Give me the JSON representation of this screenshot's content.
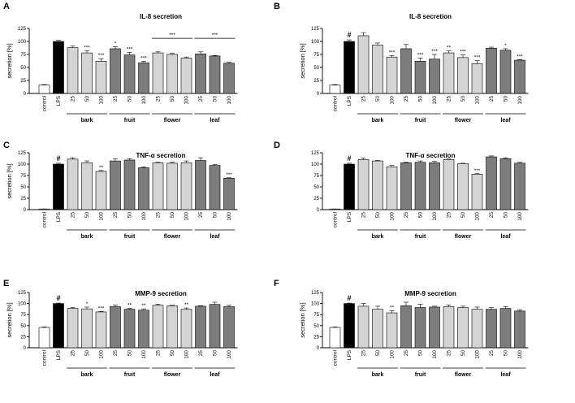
{
  "chart_data": [
    {
      "panel": "A",
      "type": "bar",
      "title": "IL-8 secretion",
      "ylabel": "secretion [%]",
      "ylim": [
        0,
        125
      ],
      "yticks": [
        "0",
        "25",
        "50",
        "75",
        "100",
        "125"
      ],
      "categories": [
        "control",
        "LPS",
        "25",
        "50",
        "100",
        "25",
        "50",
        "100",
        "25",
        "50",
        "100",
        "25",
        "50",
        "100"
      ],
      "values": [
        16,
        100,
        88,
        78,
        62,
        86,
        74,
        59,
        78,
        75,
        68,
        76,
        72,
        58
      ],
      "errors": [
        1,
        2,
        3,
        4,
        5,
        4,
        5,
        3,
        2,
        2,
        2,
        4,
        1,
        2
      ],
      "annotations": [
        "",
        "",
        "",
        "***",
        "***",
        "*",
        "***",
        "***",
        "",
        "",
        "",
        "",
        "",
        ""
      ],
      "group_lines": [
        [
          "***",
          8,
          10
        ],
        [
          "***",
          11,
          13
        ]
      ],
      "hash": "",
      "groups": [
        "bark",
        "fruit",
        "flower",
        "leaf"
      ]
    },
    {
      "panel": "B",
      "type": "bar",
      "title": "IL-8 secretion",
      "ylabel": "secretion [%]",
      "ylim": [
        0,
        125
      ],
      "yticks": [
        "0",
        "25",
        "50",
        "75",
        "100",
        "125"
      ],
      "categories": [
        "control",
        "LPS",
        "25",
        "50",
        "100",
        "25",
        "50",
        "100",
        "25",
        "50",
        "100",
        "25",
        "50",
        "100"
      ],
      "values": [
        16,
        100,
        111,
        93,
        70,
        86,
        62,
        66,
        78,
        69,
        57,
        87,
        83,
        64
      ],
      "errors": [
        1,
        3,
        6,
        4,
        3,
        8,
        6,
        9,
        4,
        5,
        6,
        2,
        3,
        1
      ],
      "annotations": [
        "",
        "",
        "",
        "",
        "***",
        "",
        "***",
        "***",
        "**",
        "***",
        "***",
        "",
        "*",
        "***"
      ],
      "group_lines": [],
      "hash": "#",
      "groups": [
        "bark",
        "fruit",
        "flower",
        "leaf"
      ]
    },
    {
      "panel": "C",
      "type": "bar",
      "title": "TNF-α secretion",
      "ylabel": "secretion [%]",
      "ylim": [
        0,
        125
      ],
      "yticks": [
        "0",
        "25",
        "50",
        "75",
        "100",
        "125"
      ],
      "categories": [
        "control",
        "LPS",
        "25",
        "50",
        "100",
        "25",
        "50",
        "100",
        "25",
        "50",
        "100",
        "25",
        "50",
        "100"
      ],
      "values": [
        1,
        100,
        111,
        103,
        84,
        107,
        109,
        92,
        103,
        102,
        103,
        108,
        97,
        69
      ],
      "errors": [
        0.5,
        2,
        3,
        4,
        2,
        5,
        3,
        2,
        1,
        2,
        4,
        6,
        2,
        1
      ],
      "annotations": [
        "",
        "",
        "",
        "",
        "**",
        "",
        "",
        "",
        "",
        "",
        "",
        "",
        "",
        "***"
      ],
      "group_lines": [],
      "hash": "#",
      "groups": [
        "bark",
        "fruit",
        "flower",
        "leaf"
      ]
    },
    {
      "panel": "D",
      "type": "bar",
      "title": "TNF-α secretion",
      "ylabel": "",
      "ylim": [
        0,
        125
      ],
      "yticks": [
        "0",
        "25",
        "50",
        "75",
        "100",
        "125"
      ],
      "categories": [
        "control",
        "LPS",
        "25",
        "50",
        "100",
        "25",
        "50",
        "100",
        "25",
        "50",
        "100",
        "25",
        "50",
        "100"
      ],
      "values": [
        1,
        100,
        110,
        107,
        94,
        103,
        104,
        103,
        110,
        101,
        78,
        116,
        112,
        102
      ],
      "errors": [
        0.5,
        2,
        3,
        1,
        3,
        1,
        3,
        3,
        1,
        1,
        1,
        2,
        2,
        2
      ],
      "annotations": [
        "",
        "",
        "",
        "",
        "",
        "",
        "",
        "",
        "",
        "",
        "***",
        "",
        "",
        ""
      ],
      "group_lines": [],
      "hash": "#",
      "groups": [
        "bark",
        "fruit",
        "flower",
        "leaf"
      ]
    },
    {
      "panel": "E",
      "type": "bar",
      "title": "MMP-9 secretion",
      "ylabel": "secretion [%]",
      "ylim": [
        0,
        125
      ],
      "yticks": [
        "0",
        "25",
        "50",
        "75",
        "100",
        "125"
      ],
      "categories": [
        "control",
        "LPS",
        "25",
        "50",
        "100",
        "25",
        "50",
        "100",
        "25",
        "50",
        "100",
        "25",
        "50",
        "100"
      ],
      "values": [
        46,
        100,
        89,
        88,
        81,
        93,
        87,
        85,
        96,
        95,
        87,
        94,
        98,
        93
      ],
      "errors": [
        1,
        1,
        2,
        4,
        1,
        4,
        2,
        3,
        2,
        1,
        3,
        1,
        5,
        3
      ],
      "annotations": [
        "",
        "",
        "",
        "*",
        "***",
        "",
        "**",
        "**",
        "",
        "",
        "**",
        "",
        "",
        ""
      ],
      "group_lines": [],
      "hash": "#",
      "groups": [
        "bark",
        "fruit",
        "flower",
        "leaf"
      ]
    },
    {
      "panel": "F",
      "type": "bar",
      "title": "MMP-9 secretion",
      "ylabel": "secretion [%]",
      "ylim": [
        0,
        125
      ],
      "yticks": [
        "0",
        "25",
        "50",
        "75",
        "100",
        "125"
      ],
      "categories": [
        "control",
        "LPS",
        "25",
        "50",
        "100",
        "25",
        "50",
        "100",
        "25",
        "50",
        "100",
        "25",
        "50",
        "100"
      ],
      "values": [
        46,
        100,
        94,
        87,
        79,
        95,
        91,
        92,
        93,
        91,
        87,
        87,
        89,
        83
      ],
      "errors": [
        1,
        1,
        6,
        7,
        5,
        8,
        7,
        2,
        4,
        3,
        5,
        4,
        4,
        3
      ],
      "annotations": [
        "",
        "",
        "",
        "",
        "**",
        "",
        "",
        "",
        "",
        "",
        "",
        "",
        "",
        ""
      ],
      "group_lines": [],
      "hash": "#",
      "groups": [
        "bark",
        "fruit",
        "flower",
        "leaf"
      ]
    }
  ],
  "colors": {
    "control": "#ffffff",
    "lps": "#000000",
    "bark": "#d4d4d4",
    "fruit": "#7d7d7d",
    "flower": "#d4d4d4",
    "leaf": "#7d7d7d"
  }
}
